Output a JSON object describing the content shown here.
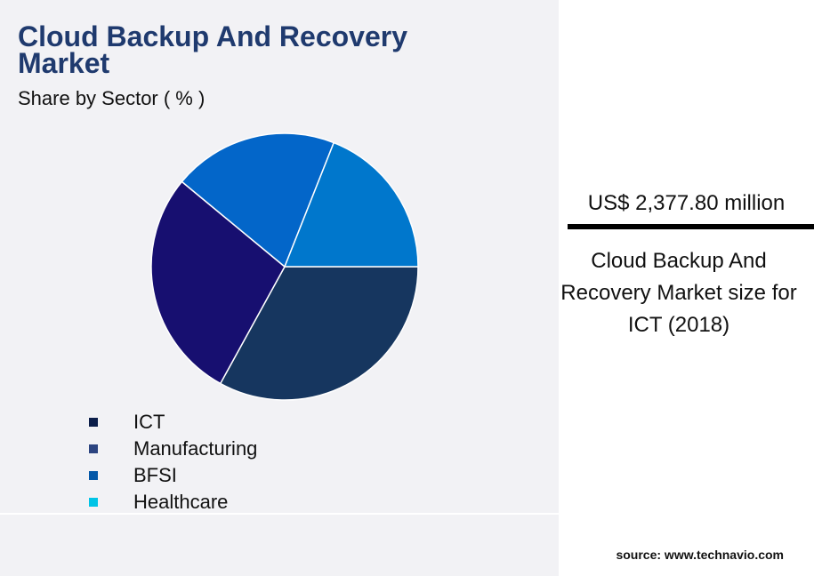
{
  "title": "Cloud Backup And Recovery Market",
  "subtitle": "Share by Sector ( % )",
  "highlight": {
    "value": "US$ 2,377.80 million",
    "description": "Cloud Backup And Recovery Market size for ICT (2018)"
  },
  "source": "source: www.technavio.com",
  "chart_data": {
    "type": "pie",
    "title": "Cloud Backup And Recovery Market",
    "subtitle": "Share by Sector ( % )",
    "categories": [
      "ICT",
      "Manufacturing",
      "BFSI",
      "Healthcare"
    ],
    "values": [
      33,
      28,
      20,
      19
    ],
    "slice_colors": [
      "#16365f",
      "#170f70",
      "#0366c9",
      "#0077cc"
    ],
    "legend_colors": [
      "#0c1e4a",
      "#2c4480",
      "#0458a8",
      "#00c4e6"
    ],
    "legend_placement": "bottom-left"
  }
}
